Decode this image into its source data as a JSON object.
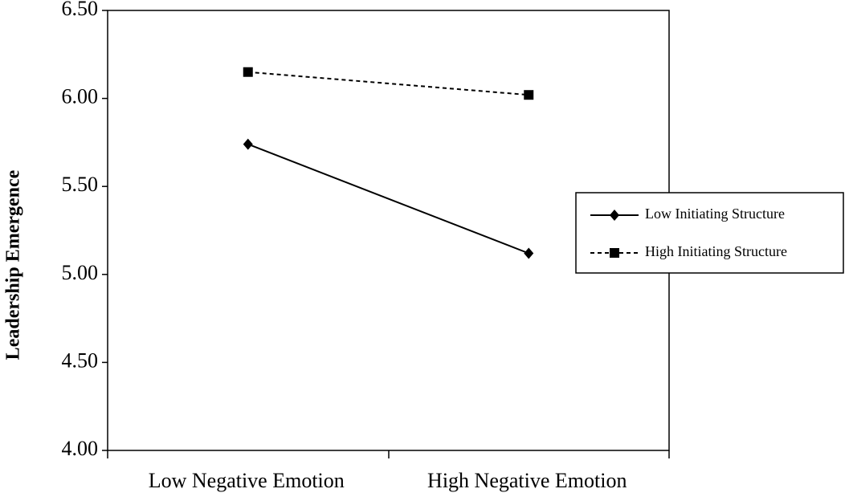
{
  "chart_data": {
    "type": "line",
    "ylabel": "Leadership Emergence",
    "categories": [
      "Low Negative Emotion",
      "High Negative Emotion"
    ],
    "series": [
      {
        "name": "Low Initiating Structure",
        "color": "#000000",
        "marker": "diamond",
        "linestyle": "solid",
        "values": [
          5.74,
          5.12
        ]
      },
      {
        "name": "High Initiating Structure",
        "color": "#000000",
        "marker": "square",
        "linestyle": "dashed",
        "values": [
          6.15,
          6.02
        ]
      }
    ],
    "ylim": [
      4,
      6.5
    ],
    "yticks": [
      {
        "value": 4,
        "label": "4.00"
      },
      {
        "value": 4.5,
        "label": "4.50"
      },
      {
        "value": 5,
        "label": "5.00"
      },
      {
        "value": 5.5,
        "label": "5.50"
      },
      {
        "value": 6,
        "label": "6.00"
      },
      {
        "value": 6.5,
        "label": "6.50"
      }
    ],
    "grid": false,
    "legend": "right"
  }
}
